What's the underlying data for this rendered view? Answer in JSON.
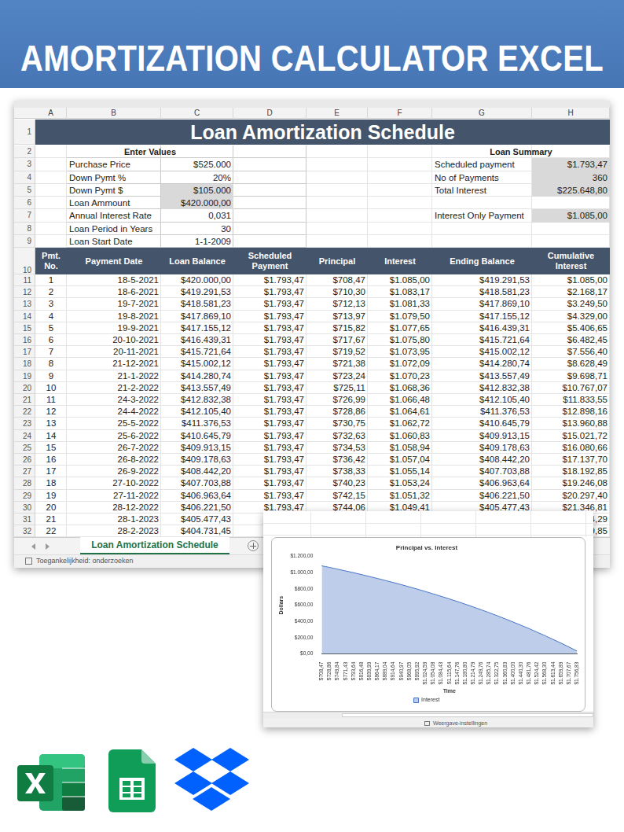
{
  "header": {
    "title": "AMORTIZATION CALCULATOR EXCEL"
  },
  "sheet": {
    "columns": [
      "A",
      "B",
      "C",
      "D",
      "E",
      "F",
      "G",
      "H"
    ],
    "row_numbers": [
      "1",
      "2",
      "3",
      "4",
      "5",
      "6",
      "7",
      "8",
      "9",
      "10",
      "11",
      "12",
      "13",
      "14",
      "15",
      "16",
      "17",
      "18",
      "19",
      "20",
      "21",
      "22",
      "23",
      "24",
      "25",
      "26",
      "27",
      "28",
      "29",
      "30",
      "31",
      "32"
    ],
    "title": "Loan Amortization Schedule",
    "enter_values": {
      "heading": "Enter Values",
      "rows": [
        [
          "Purchase Price",
          "$525.000"
        ],
        [
          "Down Pymt %",
          "20%"
        ],
        [
          "Down Pymt $",
          "$105.000"
        ],
        [
          "Loan Ammount",
          "$420.000,00"
        ],
        [
          "Annual Interest Rate",
          "0,031"
        ],
        [
          "Loan Period in Years",
          "30"
        ],
        [
          "Loan Start Date",
          "1-1-2009"
        ]
      ]
    },
    "loan_summary": {
      "heading": "Loan Summary",
      "rows": [
        [
          "Scheduled payment",
          "$1.793,47"
        ],
        [
          "No of Payments",
          "360"
        ],
        [
          "Total Interest",
          "$225.648,80"
        ],
        [
          "Interest Only Payment",
          "$1.085,00"
        ]
      ]
    },
    "table": {
      "header": [
        "Pmt. No.",
        "Payment Date",
        "Loan Balance",
        "Scheduled Payment",
        "Principal",
        "Interest",
        "Ending Balance",
        "Cumulative Interest"
      ],
      "rows": [
        {
          "cells": [
            "1",
            "18-5-2021",
            "$420.000,00",
            "$1.793,47",
            "$708,47",
            "$1.085,00",
            "$419.291,53",
            "$1.085,00"
          ]
        },
        {
          "cells": [
            "2",
            "18-6-2021",
            "$419.291,53",
            "$1.793,47",
            "$710,30",
            "$1.083,17",
            "$418.581,23",
            "$2.168,17"
          ]
        },
        {
          "cells": [
            "3",
            "19-7-2021",
            "$418.581,23",
            "$1.793,47",
            "$712,13",
            "$1.081,33",
            "$417.869,10",
            "$3.249,50"
          ]
        },
        {
          "cells": [
            "4",
            "19-8-2021",
            "$417.869,10",
            "$1.793,47",
            "$713,97",
            "$1.079,50",
            "$417.155,12",
            "$4.329,00"
          ]
        },
        {
          "cells": [
            "5",
            "19-9-2021",
            "$417.155,12",
            "$1.793,47",
            "$715,82",
            "$1.077,65",
            "$416.439,31",
            "$5.406,65"
          ]
        },
        {
          "cells": [
            "6",
            "20-10-2021",
            "$416.439,31",
            "$1.793,47",
            "$717,67",
            "$1.075,80",
            "$415.721,64",
            "$6.482,45"
          ]
        },
        {
          "cells": [
            "7",
            "20-11-2021",
            "$415.721,64",
            "$1.793,47",
            "$719,52",
            "$1.073,95",
            "$415.002,12",
            "$7.556,40"
          ]
        },
        {
          "cells": [
            "8",
            "21-12-2021",
            "$415.002,12",
            "$1.793,47",
            "$721,38",
            "$1.072,09",
            "$414.280,74",
            "$8.628,49"
          ]
        },
        {
          "cells": [
            "9",
            "21-1-2022",
            "$414.280,74",
            "$1.793,47",
            "$723,24",
            "$1.070,23",
            "$413.557,49",
            "$9.698,71"
          ]
        },
        {
          "cells": [
            "10",
            "21-2-2022",
            "$413.557,49",
            "$1.793,47",
            "$725,11",
            "$1.068,36",
            "$412.832,38",
            "$10.767,07"
          ]
        },
        {
          "cells": [
            "11",
            "24-3-2022",
            "$412.832,38",
            "$1.793,47",
            "$726,99",
            "$1.066,48",
            "$412.105,40",
            "$11.833,55"
          ]
        },
        {
          "cells": [
            "12",
            "24-4-2022",
            "$412.105,40",
            "$1.793,47",
            "$728,86",
            "$1.064,61",
            "$411.376,53",
            "$12.898,16"
          ]
        },
        {
          "cells": [
            "13",
            "25-5-2022",
            "$411.376,53",
            "$1.793,47",
            "$730,75",
            "$1.062,72",
            "$410.645,79",
            "$13.960,88"
          ]
        },
        {
          "cells": [
            "14",
            "25-6-2022",
            "$410.645,79",
            "$1.793,47",
            "$732,63",
            "$1.060,83",
            "$409.913,15",
            "$15.021,72"
          ]
        },
        {
          "cells": [
            "15",
            "26-7-2022",
            "$409.913,15",
            "$1.793,47",
            "$734,53",
            "$1.058,94",
            "$409.178,63",
            "$16.080,66"
          ]
        },
        {
          "cells": [
            "16",
            "26-8-2022",
            "$409.178,63",
            "$1.793,47",
            "$736,42",
            "$1.057,04",
            "$408.442,20",
            "$17.137,70"
          ]
        },
        {
          "cells": [
            "17",
            "26-9-2022",
            "$408.442,20",
            "$1.793,47",
            "$738,33",
            "$1.055,14",
            "$407.703,88",
            "$18.192,85"
          ]
        },
        {
          "cells": [
            "18",
            "27-10-2022",
            "$407.703,88",
            "$1.793,47",
            "$740,23",
            "$1.053,24",
            "$406.963,64",
            "$19.246,08"
          ]
        },
        {
          "cells": [
            "19",
            "27-11-2022",
            "$406.963,64",
            "$1.793,47",
            "$742,15",
            "$1.051,32",
            "$406.221,50",
            "$20.297,40"
          ]
        },
        {
          "cells": [
            "20",
            "28-12-2022",
            "$406.221,50",
            "$1.793,47",
            "$744,06",
            "$1.049,41",
            "$405.477,43",
            "$21.346,81"
          ]
        },
        {
          "cells": [
            "21",
            "28-1-2023",
            "$405.477,43"
          ],
          "cumulative_fragment": "4,29"
        },
        {
          "cells": [
            "22",
            "28-2-2023",
            "$404.731,45"
          ],
          "cumulative_fragment": "9,85"
        }
      ]
    },
    "tab": "Loan Amortization Schedule",
    "status": "Toegankelijkheid: onderzoeken"
  },
  "chart_data": {
    "type": "area",
    "title": "Principal vs. Interest",
    "xlabel": "Time",
    "ylabel": "Dollars",
    "categories": [
      "$708,47",
      "$728,86",
      "$749,84",
      "$771,43",
      "$793,64",
      "$816,48",
      "$839,99",
      "$864,17",
      "$889,04",
      "$914,64",
      "$940,97",
      "$968,05",
      "$995,92",
      "$1.024,59",
      "$1.054,08",
      "$1.084,43",
      "$1.115,64",
      "$1.147,76",
      "$1.180,80",
      "$1.214,79",
      "$1.249,76",
      "$1.285,74",
      "$1.322,75",
      "$1.360,83",
      "$1.400,00",
      "$1.440,30",
      "$1.481,76",
      "$1.524,42",
      "$1.568,30",
      "$1.613,44",
      "$1.659,89",
      "$1.707,67",
      "$1.756,83"
    ],
    "series": [
      {
        "name": "Interest",
        "color": "#4472c4",
        "values": [
          1085,
          1065,
          1044,
          1022,
          1000,
          977,
          953,
          929,
          904,
          879,
          853,
          825,
          798,
          769,
          739,
          709,
          678,
          646,
          613,
          579,
          544,
          508,
          471,
          433,
          393,
          353,
          312,
          269,
          225,
          180,
          134,
          86,
          37
        ]
      }
    ],
    "ylim": [
      0,
      1200
    ],
    "yticks": [
      {
        "value": 0,
        "label": "$0,00"
      },
      {
        "value": 200,
        "label": "$200,00"
      },
      {
        "value": 400,
        "label": "$400,00"
      },
      {
        "value": 600,
        "label": "$600,00"
      },
      {
        "value": 800,
        "label": "$800,00"
      },
      {
        "value": 1000,
        "label": "$1.000,00"
      },
      {
        "value": 1200,
        "label": "$1.200,00"
      }
    ],
    "grid": false,
    "legend": "bottom"
  },
  "chart_window_status": "Weergave-instellingen"
}
